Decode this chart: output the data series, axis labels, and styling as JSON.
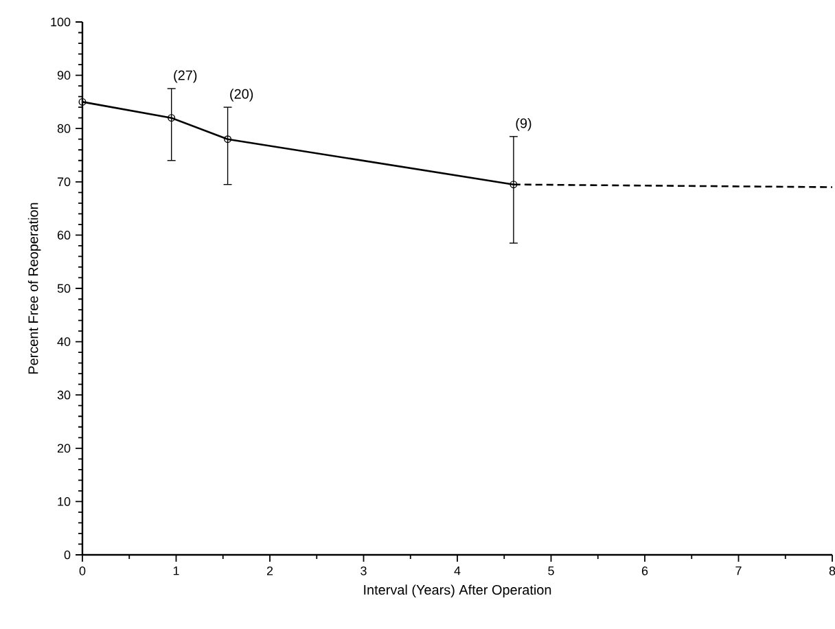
{
  "chart_data": {
    "type": "line",
    "xlabel": "Interval (Years) After Operation",
    "ylabel": "Percent Free of Reoperation",
    "series": [
      {
        "color": "#000000",
        "x": [
          0,
          0.95,
          1.55,
          4.6
        ],
        "values": [
          85,
          82,
          78,
          69.5
        ],
        "errors": [
          null,
          [
            74,
            87.5
          ],
          [
            69.5,
            84
          ],
          [
            58.5,
            78.5
          ]
        ],
        "marker": "circle",
        "line_style": "solid"
      },
      {
        "color": "#000000",
        "x": [
          4.6,
          8
        ],
        "values": [
          69.5,
          69
        ],
        "marker": "none",
        "line_style": "dashed"
      }
    ],
    "xlim": [
      0,
      8
    ],
    "ylim": [
      0,
      100
    ],
    "xticks": [
      0,
      1,
      2,
      3,
      4,
      5,
      6,
      7,
      8
    ],
    "yticks": [
      0,
      10,
      20,
      30,
      40,
      50,
      60,
      70,
      80,
      90,
      100
    ],
    "annotations": [
      {
        "text": "(27)",
        "x": 0.95,
        "y": 87.5
      },
      {
        "text": "(20)",
        "x": 1.55,
        "y": 84
      },
      {
        "text": "(9)",
        "x": 4.6,
        "y": 78.5
      }
    ]
  }
}
